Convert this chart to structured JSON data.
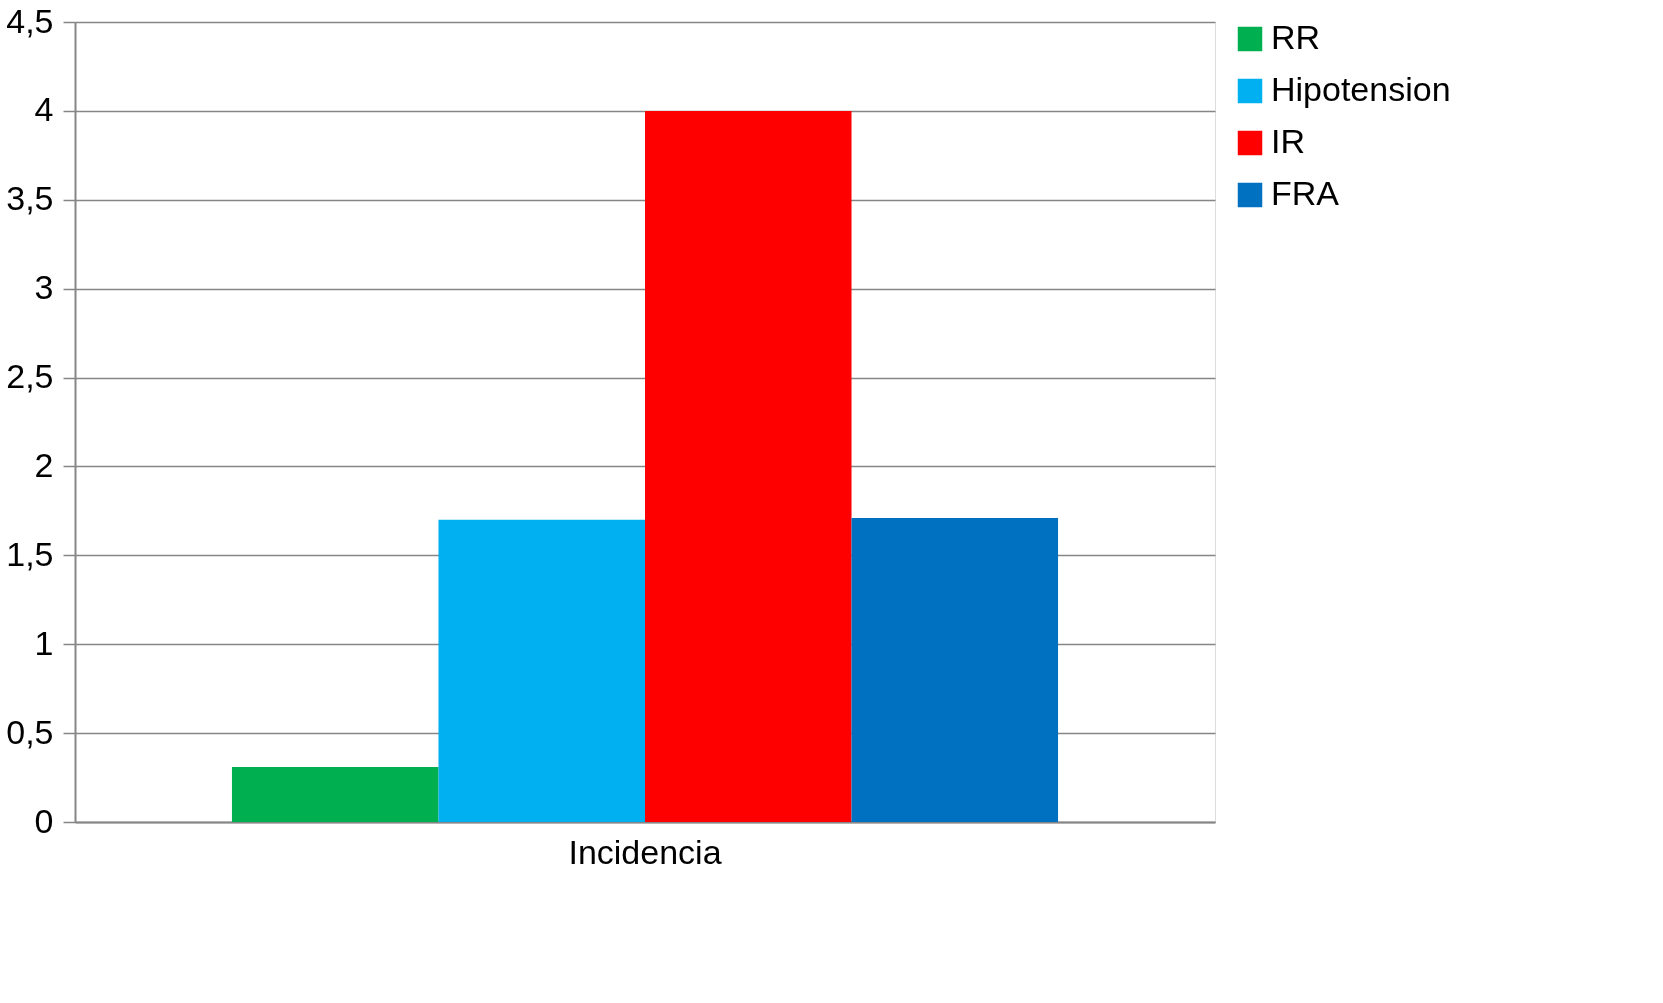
{
  "chart_data": {
    "type": "bar",
    "categories": [
      "Incidencia"
    ],
    "series": [
      {
        "name": "RR",
        "color": "#00b050",
        "values": [
          0.31
        ]
      },
      {
        "name": "Hipotension",
        "color": "#00b0f0",
        "values": [
          1.7
        ]
      },
      {
        "name": "IR",
        "color": "#ff0000",
        "values": [
          4.0
        ]
      },
      {
        "name": "FRA",
        "color": "#0070c0",
        "values": [
          1.71
        ]
      }
    ],
    "ylim": [
      0,
      4.5
    ],
    "yticks": [
      0,
      {
        "value": 0.5,
        "label": "0,5"
      },
      1,
      {
        "value": 1.5,
        "label": "1,5"
      },
      2,
      {
        "value": 2.5,
        "label": "2,5"
      },
      3,
      {
        "value": 3.5,
        "label": "3,5"
      },
      4,
      {
        "value": 4.5,
        "label": "4,5"
      }
    ],
    "grid": "y",
    "legend": "right"
  }
}
